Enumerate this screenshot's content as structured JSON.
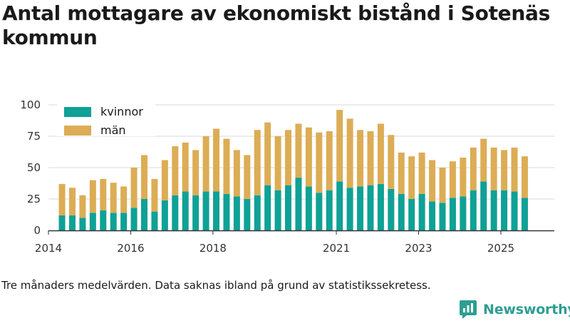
{
  "chart_data": {
    "type": "bar",
    "stacked": true,
    "title": "Antal mottagare av ekonomiskt bistånd i Sotenäs kommun",
    "caption": "Tre månaders medelvärden. Data saknas ibland på grund av statistikssekretess.",
    "xlabel": "",
    "ylabel": "",
    "ylim": [
      0,
      100
    ],
    "yticks": [
      0,
      25,
      50,
      75,
      100
    ],
    "xlim": [
      2014,
      2026.3
    ],
    "xticks": [
      2014,
      2016,
      2018,
      2021,
      2023,
      2025
    ],
    "legend_position": "top-left",
    "x": [
      2014.33,
      2014.58,
      2014.83,
      2015.08,
      2015.33,
      2015.58,
      2015.83,
      2016.08,
      2016.33,
      2016.58,
      2016.83,
      2017.08,
      2017.33,
      2017.58,
      2017.83,
      2018.08,
      2018.33,
      2018.58,
      2018.83,
      2019.08,
      2019.33,
      2019.58,
      2019.83,
      2020.08,
      2020.33,
      2020.58,
      2020.83,
      2021.08,
      2021.33,
      2021.58,
      2021.83,
      2022.08,
      2022.33,
      2022.58,
      2022.83,
      2023.08,
      2023.33,
      2023.58,
      2023.83,
      2024.08,
      2024.33,
      2024.58,
      2024.83,
      2025.08,
      2025.33,
      2025.58
    ],
    "series": [
      {
        "name": "kvinnor",
        "color": "#0fa196",
        "values": [
          12,
          12,
          10,
          14,
          16,
          14,
          14,
          18,
          25,
          15,
          24,
          28,
          31,
          28,
          31,
          31,
          29,
          27,
          25,
          28,
          36,
          32,
          36,
          42,
          35,
          30,
          32,
          39,
          34,
          35,
          36,
          37,
          33,
          29,
          25,
          29,
          23,
          22,
          26,
          27,
          32,
          39,
          32,
          32,
          31,
          26
        ]
      },
      {
        "name": "män",
        "color": "#dcad55",
        "values": [
          25,
          22,
          18,
          26,
          25,
          24,
          21,
          32,
          35,
          26,
          32,
          39,
          39,
          36,
          44,
          50,
          44,
          37,
          35,
          52,
          50,
          43,
          44,
          43,
          47,
          48,
          47,
          57,
          55,
          45,
          43,
          48,
          43,
          33,
          34,
          33,
          33,
          28,
          29,
          31,
          34,
          34,
          34,
          32,
          35,
          33
        ]
      }
    ]
  },
  "brand": {
    "name": "Newsworthy"
  }
}
